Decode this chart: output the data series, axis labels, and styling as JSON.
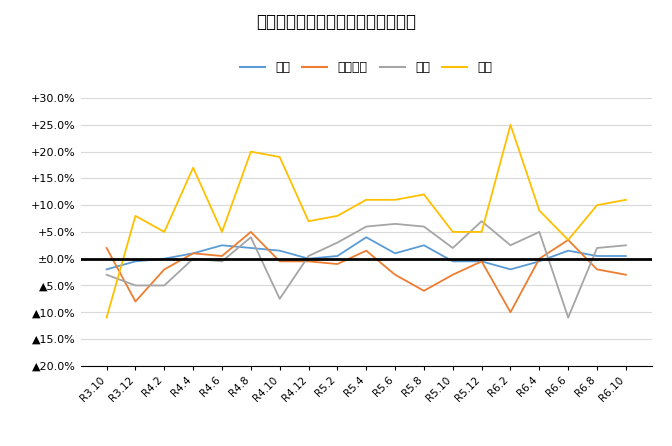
{
  "title": "米消費量・前年同月比増減率の推移",
  "legend_labels": [
    "合計",
    "家庭内食",
    "中食",
    "外食"
  ],
  "x_labels": [
    "R3.10",
    "R3.12",
    "R4.2",
    "R4.4",
    "R4.6",
    "R4.8",
    "R4.10",
    "R4.12",
    "R5.2",
    "R5.4",
    "R5.6",
    "R5.8",
    "R5.10",
    "R5.12",
    "R6.2",
    "R6.4",
    "R6.6",
    "R6.8",
    "R6.10"
  ],
  "合計": [
    -0.02,
    -0.005,
    0.0,
    0.01,
    0.025,
    0.02,
    0.015,
    0.0,
    0.005,
    0.04,
    0.01,
    0.025,
    -0.005,
    -0.005,
    -0.02,
    -0.005,
    0.015,
    0.005,
    0.005
  ],
  "家庭内食": [
    0.02,
    -0.08,
    -0.02,
    0.01,
    0.005,
    0.05,
    -0.005,
    -0.005,
    -0.01,
    0.015,
    -0.03,
    -0.06,
    -0.03,
    -0.005,
    -0.1,
    0.0,
    0.035,
    -0.02,
    -0.03
  ],
  "中食": [
    -0.03,
    -0.05,
    -0.05,
    0.0,
    -0.005,
    0.04,
    -0.075,
    0.005,
    0.03,
    0.06,
    0.065,
    0.06,
    0.02,
    0.07,
    0.025,
    0.05,
    -0.11,
    0.02,
    0.025
  ],
  "外食": [
    -0.11,
    0.08,
    0.05,
    0.17,
    0.05,
    0.2,
    0.19,
    0.07,
    0.08,
    0.11,
    0.11,
    0.12,
    0.05,
    0.05,
    0.25,
    0.09,
    0.035,
    0.1,
    0.11
  ],
  "colors": {
    "合計": "#5B9BD5",
    "家庭内食": "#ED7D31",
    "中食": "#A5A5A5",
    "外食": "#FFC000"
  },
  "ylim": [
    -0.2,
    0.3
  ],
  "yticks": [
    -0.2,
    -0.15,
    -0.1,
    -0.05,
    0.0,
    0.05,
    0.1,
    0.15,
    0.2,
    0.25,
    0.3
  ],
  "ytick_labels": [
    "―20.0%",
    "―15.0%",
    "―10.0%",
    "―5.0%",
    "±0.0%",
    "+5.0%",
    "+10.0%",
    "+15.0%",
    "+20.0%",
    "+25.0%",
    "+30.0%"
  ],
  "background_color": "#FFFFFF",
  "grid_color": "#D9D9D9",
  "zero_line_color": "#000000"
}
